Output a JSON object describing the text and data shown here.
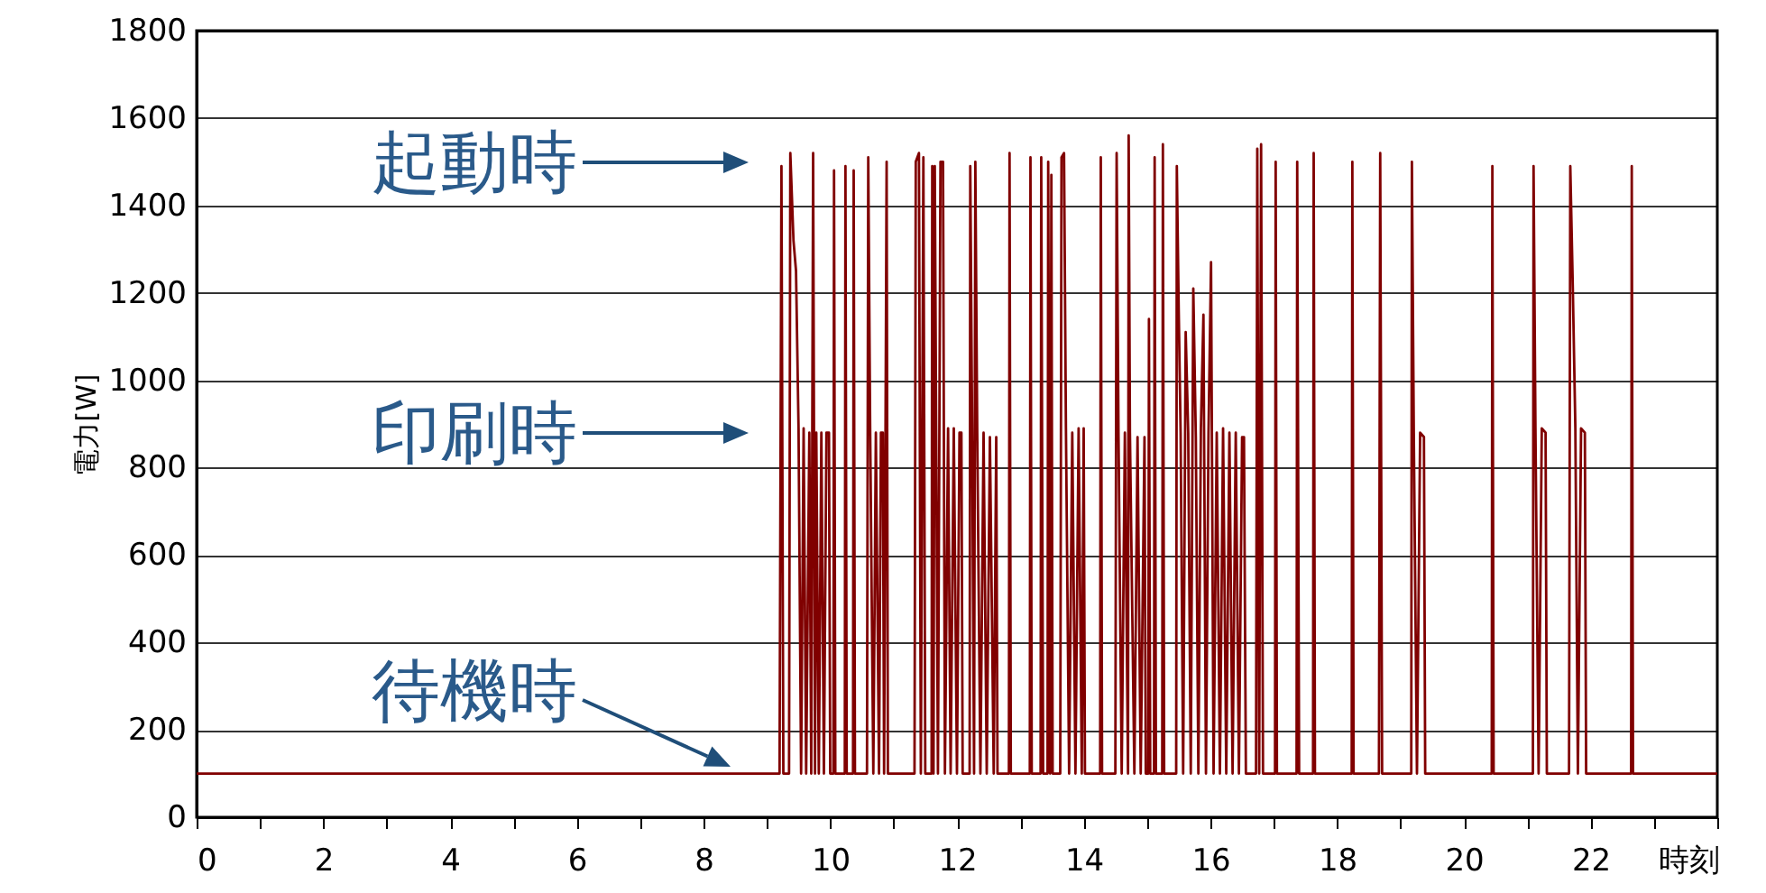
{
  "chart_data": {
    "type": "line",
    "xlabel": "時刻",
    "ylabel": "電力[W]",
    "xlim": [
      0,
      24
    ],
    "xticks": [
      0,
      {
        "value": 1,
        "label": null
      },
      2,
      {
        "value": 3,
        "label": null
      },
      4,
      {
        "value": 5,
        "label": null
      },
      6,
      {
        "value": 7,
        "label": null
      },
      8,
      {
        "value": 9,
        "label": null
      },
      10,
      {
        "value": 11,
        "label": null
      },
      12,
      {
        "value": 13,
        "label": null
      },
      14,
      {
        "value": 15,
        "label": null
      },
      16,
      {
        "value": 17,
        "label": null
      },
      18,
      {
        "value": 19,
        "label": null
      },
      20,
      {
        "value": 21,
        "label": null
      },
      22,
      {
        "value": 23,
        "label": null
      },
      {
        "value": 24,
        "label": null
      }
    ],
    "ylim": [
      0,
      1800
    ],
    "yticks": [
      0,
      200,
      400,
      600,
      800,
      1000,
      1200,
      1400,
      1600,
      1800
    ],
    "grid": "y",
    "x": [
      0,
      9.2,
      9.23,
      9.26,
      9.35,
      9.37,
      9.42,
      9.46,
      9.5,
      9.54,
      9.58,
      9.62,
      9.67,
      9.7,
      9.73,
      9.76,
      9.78,
      9.82,
      9.86,
      9.9,
      9.94,
      9.98,
      10.0,
      10.05,
      10.06,
      10.08,
      10.23,
      10.24,
      10.26,
      10.36,
      10.37,
      10.39,
      10.58,
      10.6,
      10.63,
      10.68,
      10.72,
      10.77,
      10.8,
      10.83,
      10.85,
      10.89,
      10.91,
      11.33,
      11.35,
      11.4,
      11.43,
      11.47,
      11.5,
      11.6,
      11.61,
      11.63,
      11.65,
      11.7,
      11.74,
      11.78,
      11.81,
      11.86,
      11.9,
      11.95,
      12.0,
      12.04,
      12.07,
      12.09,
      12.2,
      12.21,
      12.24,
      12.27,
      12.29,
      12.32,
      12.37,
      12.42,
      12.47,
      12.52,
      12.58,
      12.62,
      12.64,
      12.82,
      12.83,
      12.85,
      13.15,
      13.16,
      13.18,
      13.32,
      13.33,
      13.36,
      13.43,
      13.44,
      13.47,
      13.49,
      13.51,
      13.63,
      13.65,
      13.69,
      13.72,
      13.77,
      13.82,
      13.87,
      13.92,
      13.97,
      14.0,
      14.02,
      14.26,
      14.27,
      14.29,
      14.5,
      14.52,
      14.55,
      14.6,
      14.65,
      14.7,
      14.71,
      14.73,
      14.8,
      14.85,
      14.9,
      14.96,
      14.98,
      15.02,
      15.03,
      15.05,
      15.11,
      15.12,
      15.14,
      15.24,
      15.25,
      15.27,
      15.46,
      15.47,
      15.5,
      15.53,
      15.57,
      15.61,
      15.65,
      15.69,
      15.73,
      15.77,
      15.81,
      15.85,
      15.89,
      15.93,
      15.97,
      16.01,
      16.05,
      16.1,
      16.15,
      16.2,
      16.25,
      16.3,
      16.35,
      16.4,
      16.45,
      16.5,
      16.53,
      16.56,
      16.72,
      16.74,
      16.77,
      16.8,
      16.83,
      17.02,
      17.03,
      17.05,
      17.36,
      17.37,
      17.4,
      17.62,
      17.63,
      17.65,
      18.23,
      18.24,
      18.26,
      18.66,
      18.68,
      18.71,
      19.17,
      19.18,
      19.21,
      19.26,
      19.31,
      19.37,
      19.39,
      20.44,
      20.45,
      20.47,
      21.09,
      21.1,
      21.13,
      21.18,
      21.23,
      21.29,
      21.31,
      21.66,
      21.68,
      21.72,
      21.76,
      21.8,
      21.85,
      21.91,
      21.93,
      22.64,
      22.65,
      22.67,
      24
    ],
    "series": [
      {
        "color": "#800000",
        "values": [
          100,
          100,
          1490,
          100,
          100,
          1520,
          1320,
          1250,
          890,
          100,
          890,
          100,
          880,
          100,
          1520,
          100,
          880,
          100,
          880,
          100,
          880,
          880,
          100,
          100,
          1480,
          100,
          100,
          1490,
          100,
          100,
          1480,
          100,
          100,
          1510,
          890,
          100,
          880,
          100,
          880,
          880,
          100,
          1500,
          100,
          100,
          1500,
          1520,
          100,
          1510,
          100,
          100,
          1490,
          100,
          1490,
          100,
          1500,
          1500,
          100,
          890,
          100,
          890,
          100,
          880,
          880,
          100,
          100,
          1490,
          880,
          100,
          1500,
          880,
          100,
          880,
          100,
          870,
          100,
          870,
          100,
          100,
          1520,
          100,
          100,
          1510,
          100,
          100,
          1510,
          100,
          100,
          1500,
          100,
          1470,
          100,
          100,
          1510,
          1520,
          890,
          100,
          880,
          100,
          890,
          100,
          890,
          100,
          100,
          1510,
          100,
          100,
          1520,
          870,
          100,
          880,
          100,
          1560,
          880,
          100,
          870,
          100,
          870,
          100,
          100,
          1140,
          100,
          100,
          1510,
          100,
          100,
          1540,
          100,
          100,
          1490,
          1160,
          880,
          100,
          1110,
          880,
          100,
          1210,
          870,
          100,
          890,
          1150,
          100,
          880,
          1270,
          100,
          880,
          100,
          890,
          100,
          880,
          100,
          880,
          100,
          870,
          870,
          100,
          100,
          1530,
          100,
          1540,
          100,
          100,
          1500,
          100,
          100,
          1500,
          100,
          100,
          1520,
          100,
          100,
          1500,
          100,
          100,
          1520,
          100,
          100,
          1500,
          880,
          100,
          880,
          870,
          100,
          100,
          1490,
          100,
          100,
          1490,
          890,
          100,
          890,
          880,
          100,
          100,
          1490,
          1210,
          890,
          100,
          890,
          880,
          100,
          100,
          1490,
          100,
          100
        ]
      }
    ],
    "annotations": [
      "起動時",
      "印刷時",
      "待機時"
    ]
  }
}
